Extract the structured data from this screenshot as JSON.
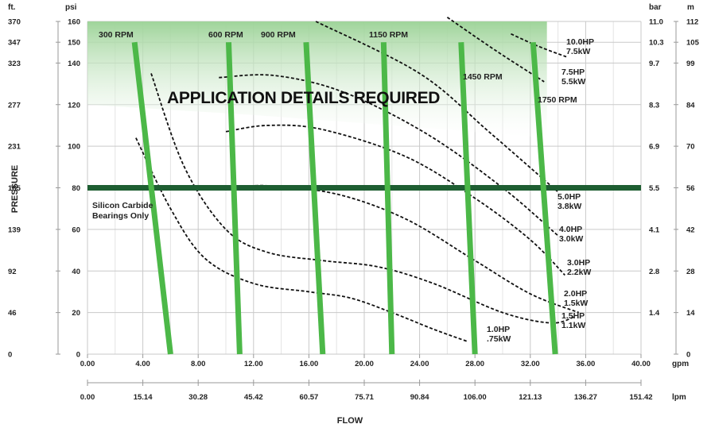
{
  "chart_data": {
    "type": "line",
    "x_gpm": {
      "min": 0,
      "max": 40,
      "ticks": [
        "0.00",
        "4.00",
        "8.00",
        "12.00",
        "16.00",
        "20.00",
        "24.00",
        "28.00",
        "32.00",
        "36.00",
        "40.00"
      ]
    },
    "x_lpm": {
      "ticks": [
        "0.00",
        "15.14",
        "30.28",
        "45.42",
        "60.57",
        "75.71",
        "90.84",
        "106.00",
        "121.13",
        "136.27",
        "151.42"
      ]
    },
    "y_psi": {
      "min": 0,
      "max": 160,
      "ticks": [
        0,
        20,
        40,
        60,
        80,
        100,
        120,
        140,
        150,
        160
      ]
    },
    "y_ft": {
      "ticks": [
        "0",
        "46",
        "92",
        "139",
        "185",
        "231",
        "277",
        "323",
        "347",
        "370"
      ]
    },
    "y_bar": {
      "ticks": [
        "1.4",
        "2.8",
        "4.1",
        "5.5",
        "6.9",
        "8.3",
        "9.7",
        "10.3",
        "11.0"
      ]
    },
    "y_m": {
      "ticks": [
        "0",
        "14",
        "28",
        "42",
        "56",
        "70",
        "84",
        "99",
        "105",
        "112"
      ]
    },
    "units": {
      "ft": "ft.",
      "psi": "psi",
      "bar": "bar",
      "m": "m",
      "gpm": "gpm",
      "lpm": "lpm"
    },
    "xlabel": "FLOW",
    "ylabel": "PRESSURE",
    "grid": true,
    "limit_line_psi": 80,
    "limit_note": [
      "Silicon Carbide",
      "Bearings Only"
    ],
    "region_note": "APPLICATION DETAILS REQUIRED",
    "rpm_curves": [
      {
        "name": "300 RPM",
        "points": [
          [
            3.4,
            150
          ],
          [
            6.0,
            0
          ]
        ]
      },
      {
        "name": "600 RPM",
        "points": [
          [
            10.2,
            150
          ],
          [
            11.0,
            0
          ]
        ]
      },
      {
        "name": "900 RPM",
        "points": [
          [
            15.8,
            150
          ],
          [
            17.0,
            0
          ]
        ]
      },
      {
        "name": "1150 RPM",
        "points": [
          [
            21.4,
            150
          ],
          [
            22.0,
            0
          ]
        ]
      },
      {
        "name": "1450 RPM",
        "points": [
          [
            27.0,
            150
          ],
          [
            28.0,
            0
          ]
        ]
      },
      {
        "name": "1750 RPM",
        "points": [
          [
            32.2,
            150
          ],
          [
            33.8,
            0
          ]
        ]
      }
    ],
    "hp_curves": [
      {
        "name": "10.0HP 7.5kW",
        "points": [
          [
            30.6,
            154
          ],
          [
            32.6,
            148
          ],
          [
            34.6,
            143
          ]
        ]
      },
      {
        "name": "7.5HP 5.5kW",
        "points": [
          [
            26.0,
            162
          ],
          [
            29.5,
            146
          ],
          [
            33.0,
            131
          ]
        ]
      },
      {
        "name": "5.0HP 3.8kW",
        "points": [
          [
            16.5,
            160
          ],
          [
            24.0,
            135
          ],
          [
            29.0,
            107
          ],
          [
            34.0,
            78
          ]
        ]
      },
      {
        "name": "4.0HP 3.0kW",
        "points": [
          [
            9.5,
            133
          ],
          [
            13.5,
            134
          ],
          [
            18.5,
            126
          ],
          [
            24.5,
            106
          ],
          [
            30.0,
            80
          ],
          [
            34.0,
            57
          ]
        ]
      },
      {
        "name": "3.0HP 2.2kW",
        "points": [
          [
            10.0,
            107
          ],
          [
            13.0,
            110
          ],
          [
            17.0,
            108
          ],
          [
            23.0,
            95
          ],
          [
            28.0,
            75
          ],
          [
            32.0,
            55
          ],
          [
            34.5,
            38
          ]
        ]
      },
      {
        "name": "2.0HP 1.5kW",
        "points": [
          [
            11.0,
            80
          ],
          [
            13.0,
            81
          ],
          [
            18.0,
            77
          ],
          [
            23.0,
            65
          ],
          [
            28.0,
            45
          ],
          [
            32.0,
            29
          ],
          [
            35.5,
            20
          ]
        ]
      },
      {
        "name": "1.5HP 1.1kW",
        "points": [
          [
            4.6,
            135
          ],
          [
            7.0,
            90
          ],
          [
            10.0,
            60
          ],
          [
            13.0,
            49
          ],
          [
            17.0,
            45
          ],
          [
            21.0,
            42
          ],
          [
            25.0,
            34
          ],
          [
            30.0,
            20
          ],
          [
            33.5,
            15
          ],
          [
            35.2,
            18
          ]
        ]
      },
      {
        "name": "1.0HP .75kW",
        "points": [
          [
            3.5,
            104
          ],
          [
            6.0,
            70
          ],
          [
            8.5,
            46
          ],
          [
            12.0,
            34
          ],
          [
            16.0,
            30
          ],
          [
            19.0,
            27
          ],
          [
            22.0,
            20
          ],
          [
            25.0,
            12
          ],
          [
            27.5,
            6
          ]
        ]
      }
    ],
    "labels": {
      "rpm": [
        "300 RPM",
        "600 RPM",
        "900 RPM",
        "1150 RPM",
        "1450 RPM",
        "1750 RPM"
      ],
      "hp": [
        [
          "10.0HP",
          "7.5kW"
        ],
        [
          "7.5HP",
          "5.5kW"
        ],
        [
          "5.0HP",
          "3.8kW"
        ],
        [
          "4.0HP",
          "3.0kW"
        ],
        [
          "3.0HP",
          "2.2kW"
        ],
        [
          "2.0HP",
          "1.5kW"
        ],
        [
          "1.5HP",
          "1.1kW"
        ],
        [
          "1.0HP",
          ".75kW"
        ]
      ]
    },
    "colors": {
      "rpm_line": "#4cb848",
      "limit_line": "#1e5e32",
      "shade_top": "#9fd49a",
      "shade_bottom": "#ffffff",
      "hp_line": "#111111"
    }
  }
}
